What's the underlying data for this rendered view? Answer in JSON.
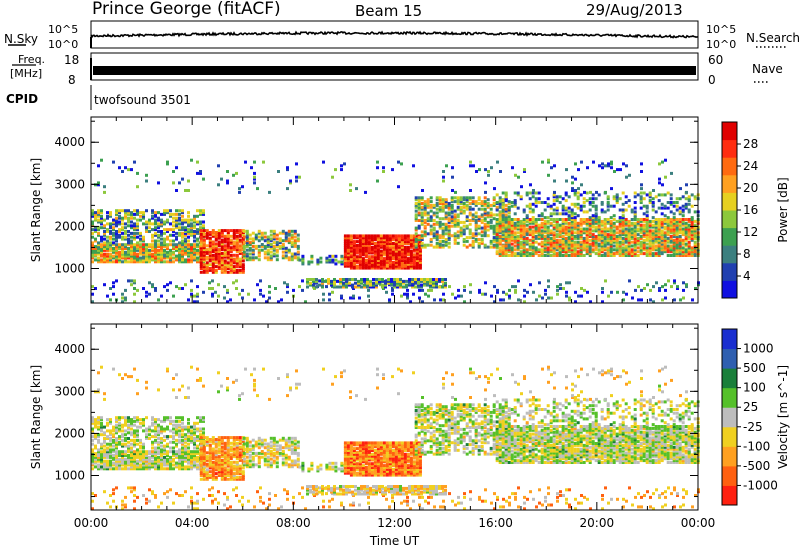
{
  "header": {
    "station": "Prince George (fitACF)",
    "beam": "Beam 15",
    "date": "29/Aug/2013"
  },
  "nsky_panel": {
    "left_label": "N.Sky",
    "left_tick_top": "10^5",
    "left_tick_bottom": "10^0",
    "right_tick_top": "10^5",
    "right_tick_bottom": "10^0",
    "right_label": "N.Search"
  },
  "freq_panel": {
    "left_label_1": "Freq.",
    "left_label_2": "[MHz]",
    "left_tick_top": "18",
    "left_tick_bottom": "8",
    "right_tick_top": "60",
    "right_tick_bottom": "0",
    "right_label": "Nave"
  },
  "cpid_panel": {
    "label": "CPID",
    "program": "twofsound 3501"
  },
  "chart_data": [
    {
      "type": "heatmap",
      "title": "",
      "ylabel": "Slant Range [km]",
      "xlabel": "",
      "ylim": [
        180,
        4600
      ],
      "yticks": [
        "1000",
        "2000",
        "3000",
        "4000"
      ],
      "colorbar_label": "Power [dB]",
      "colorbar_ticks": [
        "4",
        "8",
        "12",
        "16",
        "20",
        "24",
        "28"
      ],
      "colorbar_colors": [
        "#1010e0",
        "#2040b0",
        "#3b7f7f",
        "#3ca050",
        "#8cc83c",
        "#e6d020",
        "#ffa020",
        "#ff6a10",
        "#ff2d10",
        "#e00000"
      ]
    },
    {
      "type": "heatmap",
      "title": "",
      "ylabel": "Slant Range [km]",
      "xlabel": "Time UT",
      "ylim": [
        180,
        4600
      ],
      "yticks": [
        "1000",
        "2000",
        "3000",
        "4000"
      ],
      "xticks": [
        "00:00",
        "04:00",
        "08:00",
        "12:00",
        "16:00",
        "20:00",
        "00:00"
      ],
      "colorbar_label": "Velocity [m s^-1]",
      "colorbar_ticks": [
        "1000",
        "500",
        "100",
        "25",
        "-25",
        "-100",
        "-500",
        "-1000"
      ],
      "colorbar_colors": [
        "#1a2fd0",
        "#2f5fb0",
        "#1a7f3a",
        "#55c02a",
        "#bdbdbd",
        "#f0d020",
        "#ffa020",
        "#ff6010",
        "#ff2010"
      ]
    }
  ]
}
